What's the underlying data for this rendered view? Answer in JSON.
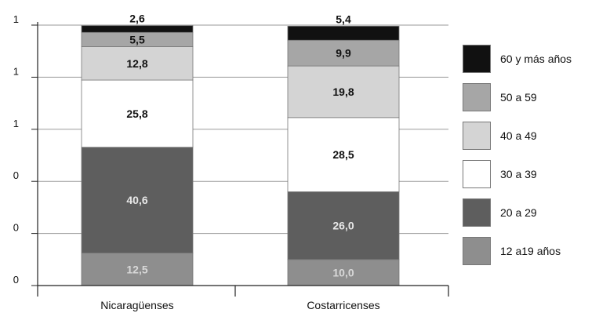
{
  "chart_data": {
    "type": "bar",
    "stacked": true,
    "categories": [
      "Nicaragüenses",
      "Costarricenses"
    ],
    "y_tick_labels": [
      "0",
      "0",
      "0",
      "1",
      "1",
      "1"
    ],
    "ylim": [
      0,
      100
    ],
    "grid": true,
    "legend_position": "right",
    "series": [
      {
        "name": "12 a19 años",
        "values": [
          12.5,
          10.0
        ],
        "labels": [
          "12,5",
          "10,0"
        ],
        "color": "#8e8e8e",
        "label_color": "#d8d8d8"
      },
      {
        "name": "20 a 29",
        "values": [
          40.6,
          26.0
        ],
        "labels": [
          "40,6",
          "26,0"
        ],
        "color": "#5e5e5e",
        "label_color": "#e8e8e8"
      },
      {
        "name": "30 a 39",
        "values": [
          25.8,
          28.5
        ],
        "labels": [
          "25,8",
          "28,5"
        ],
        "color": "#ffffff",
        "label_color": "#111111"
      },
      {
        "name": "40 a 49",
        "values": [
          12.8,
          19.8
        ],
        "labels": [
          "12,8",
          "19,8"
        ],
        "color": "#d4d4d4",
        "label_color": "#111111"
      },
      {
        "name": "50 a 59",
        "values": [
          5.5,
          9.9
        ],
        "labels": [
          "5,5",
          "9,9"
        ],
        "color": "#a6a6a6",
        "label_color": "#111111"
      },
      {
        "name": "60 y más años",
        "values": [
          2.6,
          5.4
        ],
        "labels": [
          "2,6",
          "5,4"
        ],
        "color": "#111111",
        "label_color": "#111111"
      }
    ]
  }
}
